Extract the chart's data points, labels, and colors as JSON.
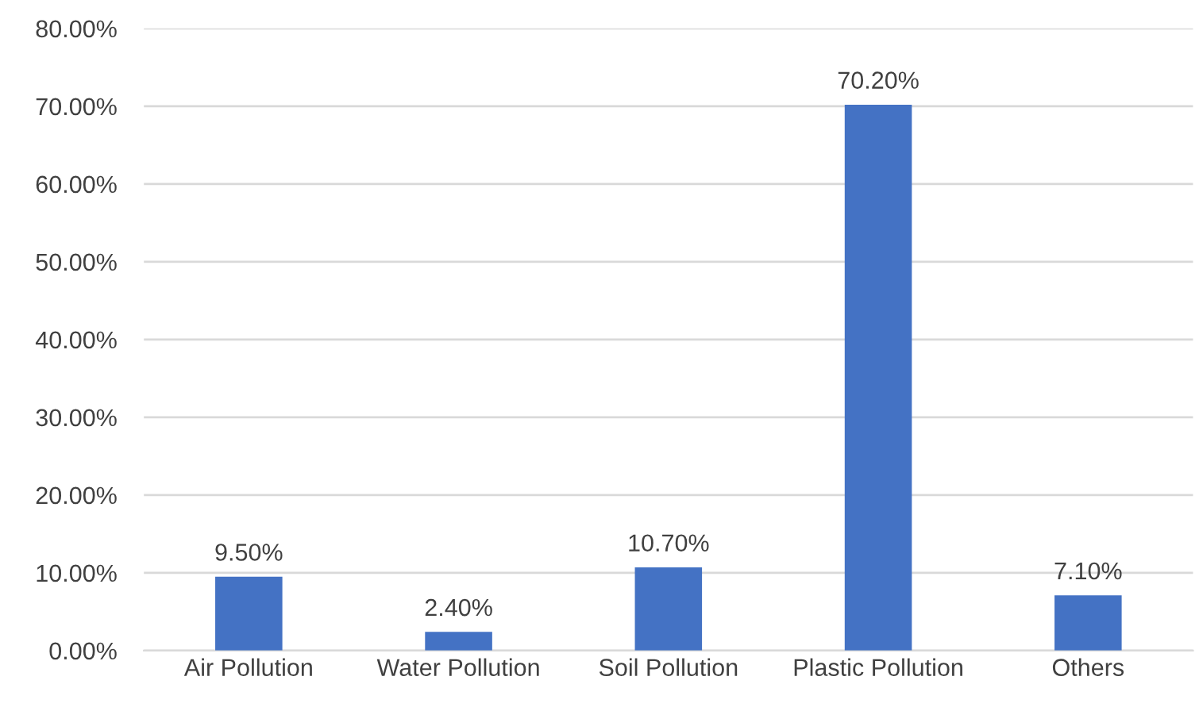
{
  "chart_data": {
    "type": "bar",
    "categories": [
      "Air Pollution",
      "Water Pollution",
      "Soil Pollution",
      "Plastic Pollution",
      "Others"
    ],
    "values": [
      9.5,
      2.4,
      10.7,
      70.2,
      7.1
    ],
    "value_labels": [
      "9.50%",
      "2.40%",
      "10.70%",
      "70.20%",
      "7.10%"
    ],
    "color": "#4472c4",
    "ylim": [
      0,
      80
    ],
    "yticks": [
      {
        "value": 0,
        "label": "0.00%"
      },
      {
        "value": 10,
        "label": "10.00%"
      },
      {
        "value": 20,
        "label": "20.00%"
      },
      {
        "value": 30,
        "label": "30.00%"
      },
      {
        "value": 40,
        "label": "40.00%"
      },
      {
        "value": 50,
        "label": "50.00%"
      },
      {
        "value": 60,
        "label": "60.00%"
      },
      {
        "value": 70,
        "label": "70.00%"
      },
      {
        "value": 80,
        "label": "80.00%"
      }
    ],
    "grid": "y",
    "legend": false
  }
}
